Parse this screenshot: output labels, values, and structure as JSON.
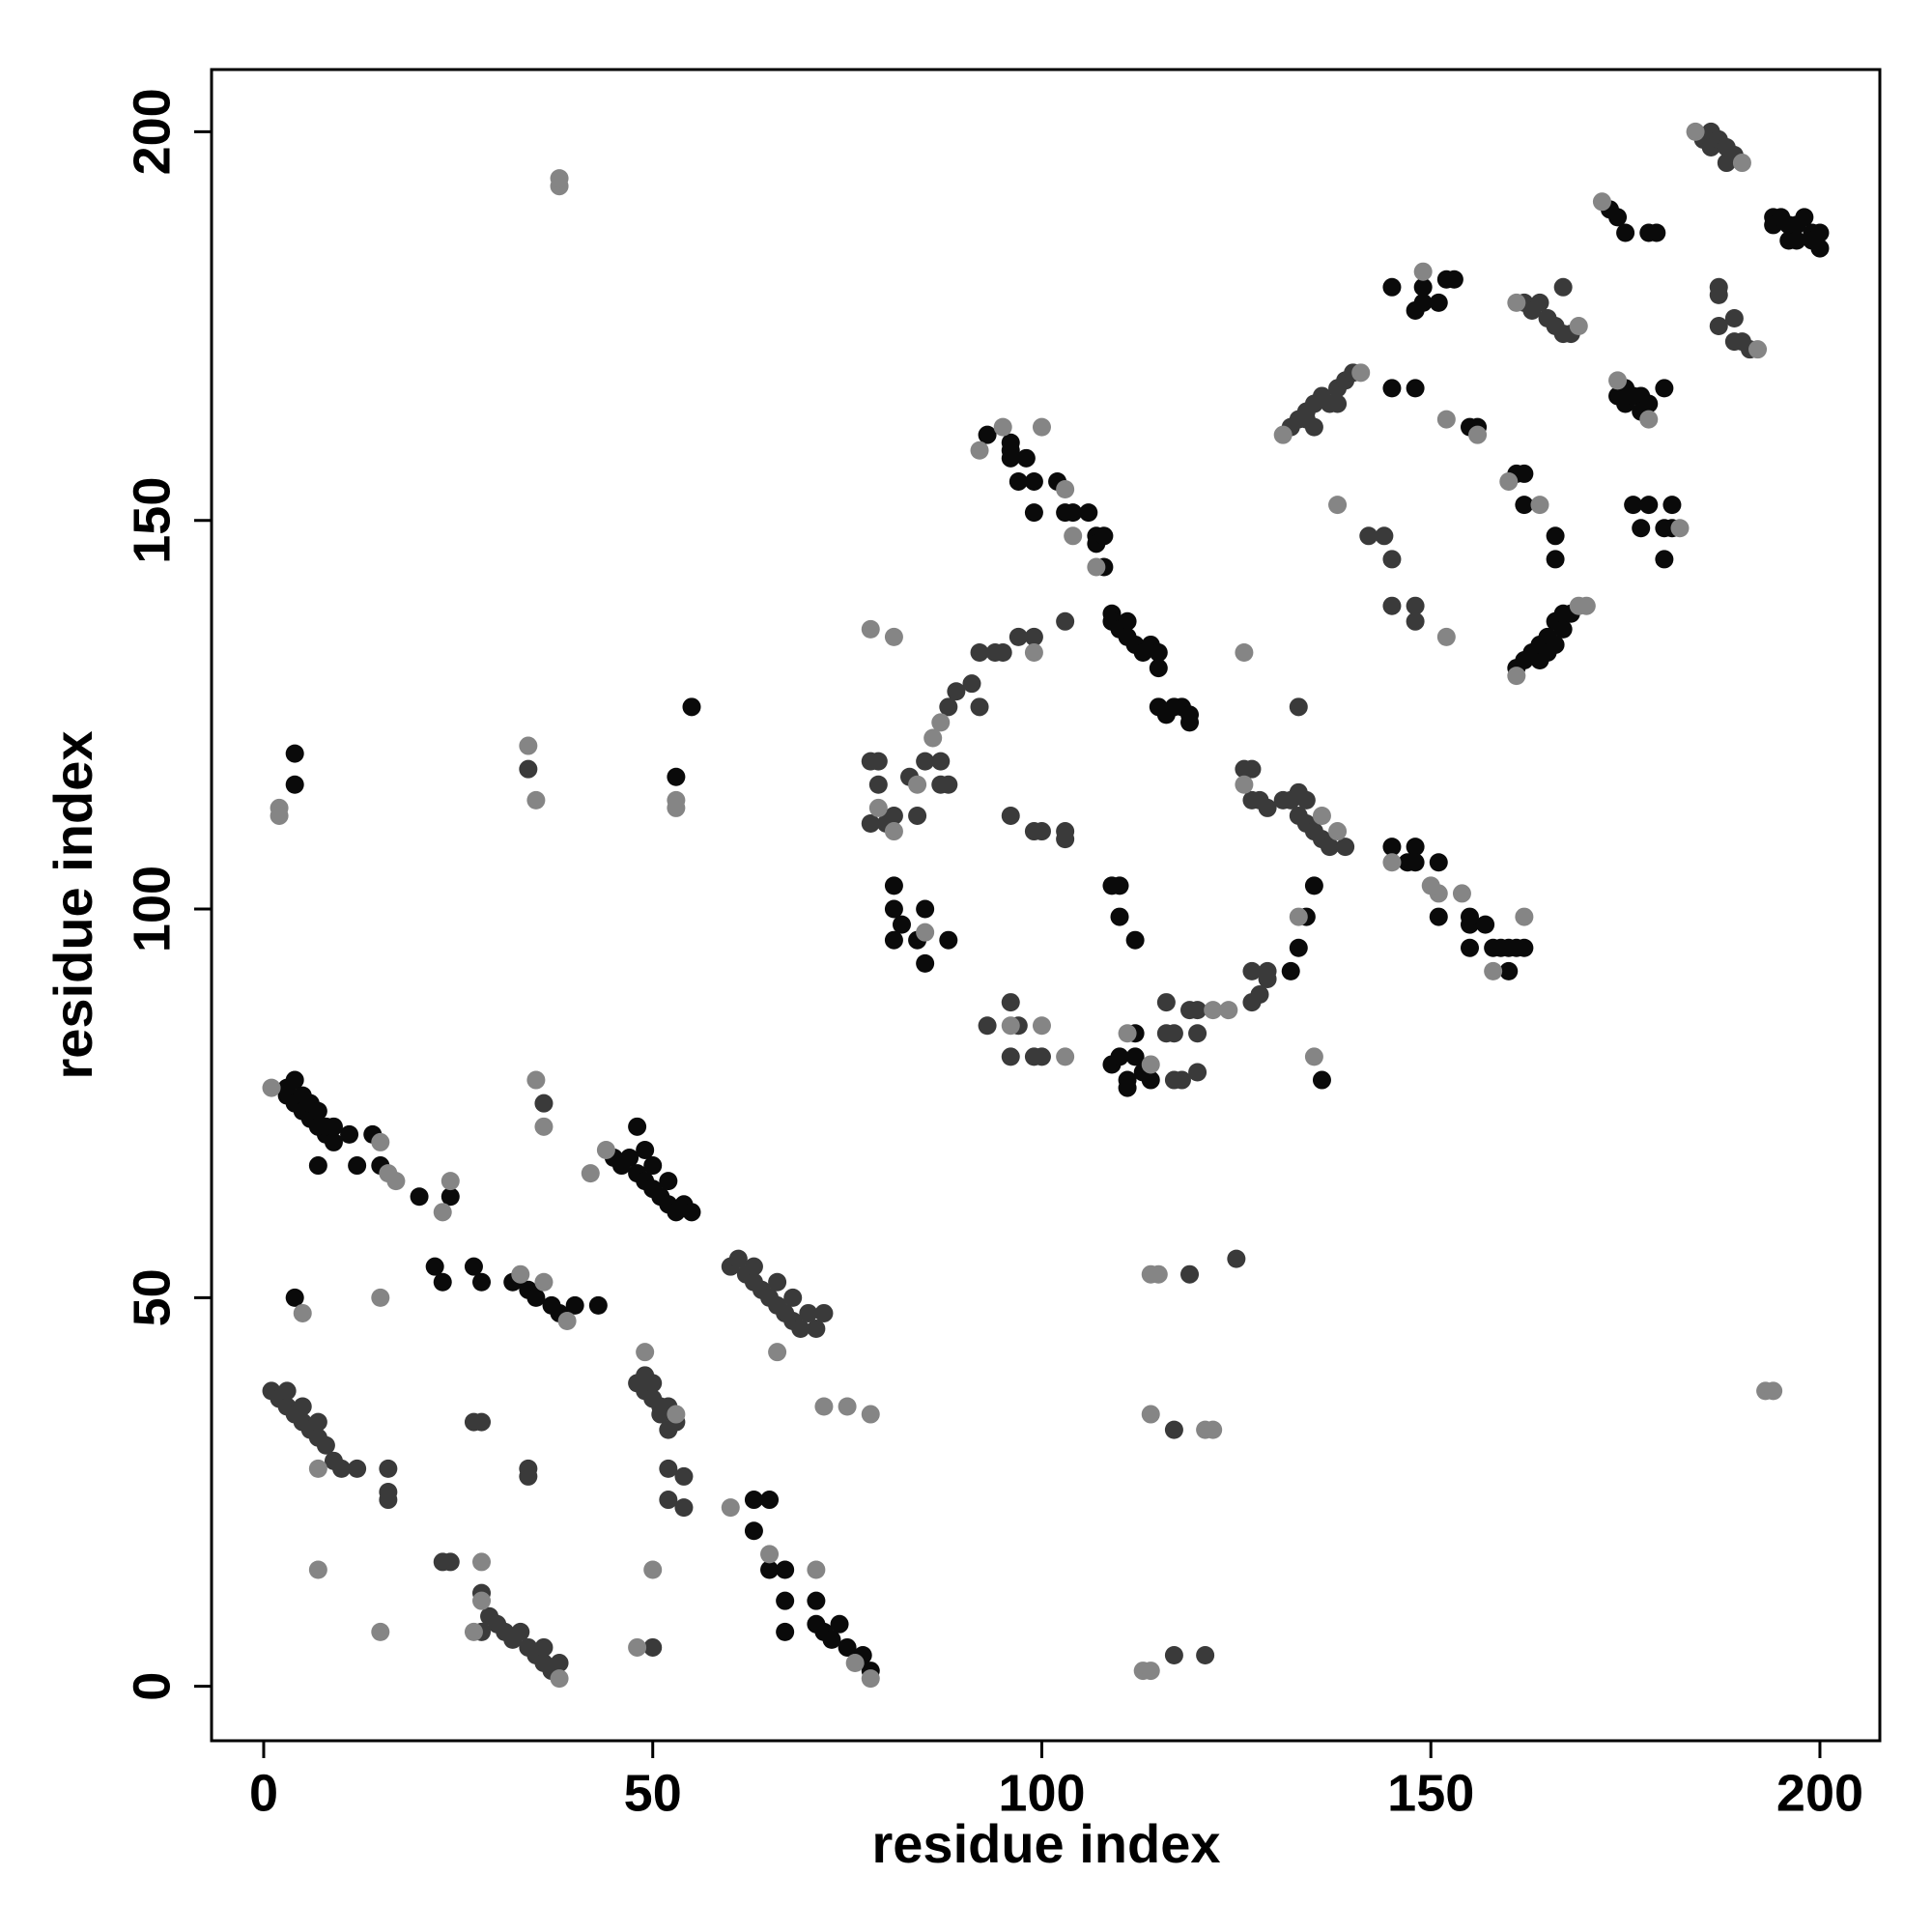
{
  "chart_data": {
    "type": "scatter",
    "x_label": "residue index",
    "y_label": "residue index",
    "xlim": [
      -6.7,
      207.7
    ],
    "ylim": [
      -7,
      208
    ],
    "xticks": [
      0,
      50,
      100,
      150,
      200
    ],
    "yticks": [
      0,
      50,
      100,
      150,
      200
    ],
    "grid": false,
    "series": [
      {
        "color": "#0a0a0a",
        "x": [
          3,
          3,
          4,
          4,
          5,
          5,
          6,
          6,
          7,
          7,
          8,
          8,
          9,
          9,
          7,
          11,
          12,
          14,
          15,
          20,
          24,
          4,
          4,
          4,
          22,
          23,
          27,
          28,
          32,
          34,
          35,
          37,
          38,
          40,
          43,
          45,
          46,
          47,
          48,
          48,
          49,
          49,
          50,
          50,
          51,
          52,
          52,
          53,
          54,
          55,
          53,
          55,
          63,
          65,
          63,
          65,
          67,
          67,
          67,
          71,
          71,
          72,
          73,
          74,
          75,
          77,
          78,
          81,
          81,
          82,
          81,
          84,
          85,
          85,
          88,
          109,
          110,
          110,
          112,
          109,
          110,
          111,
          111,
          112,
          112,
          113,
          114,
          132,
          133,
          134,
          135,
          136,
          93,
          96,
          96,
          96,
          97,
          98,
          99,
          99,
          102,
          103,
          104,
          106,
          107,
          107,
          108,
          108,
          109,
          109,
          110,
          111,
          111,
          112,
          113,
          114,
          115,
          115,
          115,
          116,
          117,
          118,
          119,
          119,
          145,
          147,
          148,
          148,
          151,
          151,
          155,
          155,
          155,
          157,
          158,
          159,
          160,
          160,
          161,
          162,
          145,
          145,
          148,
          148,
          149,
          149,
          151,
          152,
          153,
          155,
          156,
          161,
          162,
          162,
          166,
          166,
          161,
          162,
          163,
          164,
          164,
          165,
          165,
          166,
          166,
          167,
          167,
          168,
          173,
          174,
          175,
          178,
          179,
          174,
          175,
          175,
          176,
          177,
          177,
          178,
          180,
          176,
          177,
          178,
          180,
          180,
          181,
          181,
          194,
          194,
          195,
          196,
          196,
          197,
          197,
          198,
          199,
          200,
          200,
          199
        ],
        "values": [
          77,
          76,
          78,
          75,
          76,
          74,
          73,
          75,
          72,
          74,
          71,
          72,
          70,
          72,
          67,
          71,
          67,
          71,
          67,
          63,
          63,
          50,
          116,
          120,
          54,
          52,
          54,
          52,
          52,
          51,
          50,
          49,
          48,
          49,
          49,
          68,
          67,
          68,
          66,
          72,
          65,
          69,
          64,
          67,
          63,
          65,
          62,
          61,
          62,
          61,
          117,
          126,
          24,
          24,
          20,
          15,
          15,
          11,
          7,
          11,
          8,
          7,
          6,
          8,
          5,
          4,
          2,
          103,
          100,
          98,
          96,
          96,
          100,
          93,
          96,
          103,
          103,
          99,
          96,
          80,
          81,
          78,
          77,
          81,
          84,
          79,
          78,
          92,
          95,
          99,
          103,
          78,
          161,
          159,
          160,
          158,
          155,
          158,
          155,
          151,
          155,
          151,
          151,
          151,
          148,
          147,
          148,
          144,
          138,
          137,
          136,
          137,
          135,
          134,
          133,
          134,
          131,
          133,
          126,
          125,
          126,
          126,
          124,
          125,
          108,
          106,
          108,
          106,
          106,
          99,
          98,
          99,
          95,
          98,
          95,
          95,
          92,
          95,
          95,
          95,
          180,
          167,
          167,
          177,
          180,
          178,
          178,
          181,
          181,
          162,
          162,
          156,
          156,
          152,
          148,
          145,
          131,
          132,
          133,
          132,
          134,
          135,
          133,
          137,
          134,
          138,
          136,
          138,
          190,
          189,
          187,
          187,
          187,
          166,
          167,
          165,
          166,
          166,
          164,
          165,
          167,
          152,
          149,
          152,
          149,
          145,
          149,
          152,
          189,
          188,
          189,
          188,
          186,
          188,
          186,
          189,
          187,
          185,
          187,
          186
        ]
      },
      {
        "color": "#3a3a3a",
        "x": [
          1,
          2,
          3,
          3,
          4,
          5,
          5,
          6,
          7,
          7,
          8,
          9,
          10,
          12,
          16,
          16,
          16,
          23,
          24,
          28,
          29,
          28,
          30,
          31,
          32,
          33,
          34,
          35,
          36,
          36,
          37,
          38,
          27,
          28,
          34,
          34,
          36,
          34,
          48,
          49,
          49,
          50,
          50,
          51,
          51,
          52,
          52,
          53,
          52,
          52,
          54,
          54,
          50,
          60,
          61,
          62,
          63,
          63,
          64,
          65,
          66,
          66,
          67,
          68,
          68,
          69,
          70,
          71,
          72,
          78,
          79,
          80,
          81,
          78,
          79,
          83,
          84,
          85,
          87,
          87,
          88,
          88,
          89,
          91,
          92,
          92,
          94,
          95,
          97,
          99,
          103,
          93,
          96,
          97,
          96,
          99,
          100,
          96,
          99,
          100,
          103,
          103,
          116,
          116,
          117,
          117,
          118,
          119,
          120,
          120,
          120,
          127,
          127,
          128,
          129,
          129,
          119,
          125,
          117,
          117,
          121,
          126,
          127,
          127,
          128,
          129,
          131,
          132,
          133,
          133,
          134,
          134,
          135,
          136,
          137,
          139,
          133,
          132,
          133,
          134,
          134,
          135,
          135,
          136,
          137,
          138,
          138,
          139,
          140,
          142,
          144,
          145,
          145,
          148,
          148,
          162,
          163,
          164,
          165,
          166,
          167,
          167,
          168,
          185,
          186,
          186,
          187,
          188,
          188,
          189,
          187,
          187,
          187,
          189,
          189,
          190,
          191
        ],
        "values": [
          38,
          37,
          36,
          38,
          35,
          34,
          36,
          33,
          32,
          34,
          31,
          29,
          28,
          28,
          28,
          25,
          24,
          16,
          16,
          12,
          9,
          7,
          8,
          7,
          6,
          7,
          5,
          4,
          3,
          5,
          2,
          3,
          34,
          34,
          28,
          27,
          75,
          118,
          39,
          38,
          40,
          37,
          39,
          36,
          35,
          36,
          33,
          34,
          28,
          24,
          27,
          23,
          5,
          54,
          55,
          53,
          52,
          54,
          51,
          50,
          52,
          49,
          48,
          50,
          47,
          46,
          48,
          46,
          48,
          111,
          116,
          111,
          112,
          119,
          119,
          117,
          112,
          119,
          119,
          116,
          116,
          126,
          128,
          129,
          126,
          133,
          133,
          133,
          135,
          135,
          137,
          85,
          88,
          85,
          81,
          81,
          81,
          112,
          110,
          110,
          110,
          109,
          88,
          84,
          84,
          78,
          78,
          87,
          87,
          84,
          79,
          88,
          92,
          89,
          91,
          92,
          53,
          55,
          33,
          4,
          4,
          118,
          118,
          114,
          114,
          113,
          114,
          114,
          115,
          112,
          111,
          114,
          110,
          109,
          108,
          108,
          126,
          162,
          163,
          163,
          164,
          165,
          162,
          166,
          165,
          167,
          165,
          168,
          169,
          148,
          148,
          145,
          139,
          139,
          137,
          178,
          177,
          178,
          176,
          175,
          174,
          180,
          174,
          199,
          200,
          198,
          199,
          196,
          198,
          197,
          180,
          179,
          175,
          176,
          173,
          173,
          172
        ]
      },
      {
        "color": "#858585",
        "x": [
          1,
          2,
          2,
          15,
          7,
          15,
          28,
          27,
          34,
          35,
          35,
          36,
          38,
          38,
          15,
          16,
          17,
          23,
          24,
          42,
          44,
          53,
          53,
          50,
          48,
          60,
          66,
          71,
          72,
          75,
          78,
          78,
          81,
          79,
          84,
          87,
          86,
          99,
          81,
          85,
          96,
          100,
          103,
          111,
          114,
          122,
          124,
          133,
          135,
          114,
          115,
          114,
          121,
          122,
          113,
          114,
          95,
          100,
          92,
          103,
          104,
          107,
          138,
          152,
          149,
          152,
          156,
          160,
          164,
          161,
          169,
          170,
          169,
          161,
          172,
          174,
          178,
          182,
          184,
          190,
          192,
          193,
          194,
          131,
          141,
          126,
          7,
          5,
          39,
          36,
          33,
          49,
          53,
          65,
          78,
          76,
          38,
          28,
          126,
          136,
          138,
          151,
          154,
          158,
          162,
          145,
          150
        ],
        "values": [
          77,
          113,
          112,
          50,
          15,
          7,
          16,
          7,
          121,
          114,
          78,
          72,
          193,
          194,
          70,
          66,
          65,
          61,
          65,
          66,
          69,
          113,
          114,
          15,
          5,
          23,
          43,
          15,
          36,
          36,
          35,
          136,
          135,
          113,
          116,
          124,
          122,
          133,
          110,
          97,
          85,
          85,
          81,
          84,
          80,
          87,
          87,
          99,
          81,
          53,
          53,
          35,
          33,
          33,
          2,
          2,
          162,
          162,
          159,
          154,
          148,
          144,
          152,
          135,
          182,
          163,
          161,
          155,
          152,
          130,
          139,
          139,
          175,
          178,
          191,
          168,
          163,
          149,
          200,
          196,
          172,
          38,
          38,
          161,
          169,
          133,
          28,
          48,
          47,
          52,
          53,
          43,
          35,
          17,
          1,
          3,
          1,
          11,
          116,
          112,
          110,
          102,
          102,
          92,
          99,
          106,
          103
        ]
      }
    ]
  }
}
